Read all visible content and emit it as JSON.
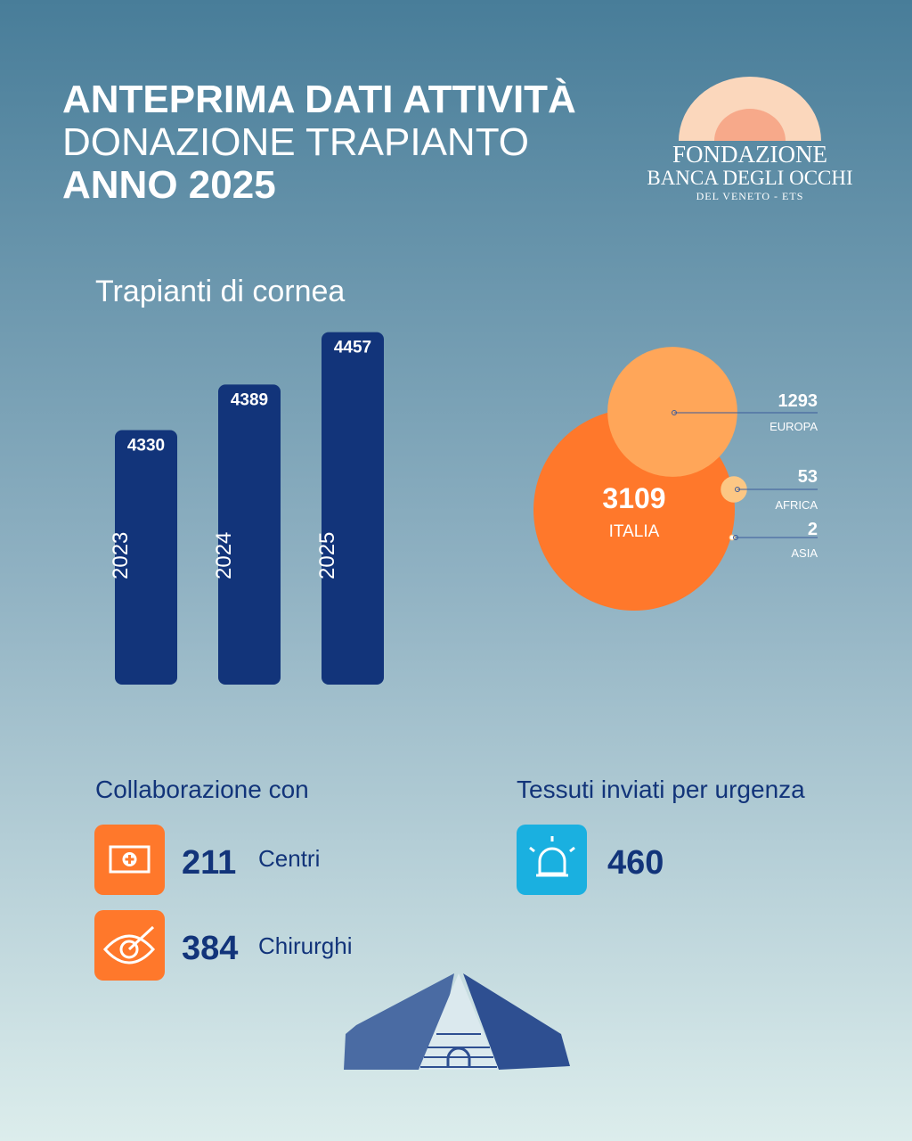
{
  "header": {
    "line1": "ANTEPRIMA DATI ATTIVITÀ",
    "line2": "DONAZIONE TRAPIANTO",
    "line3": "ANNO 2025"
  },
  "logo": {
    "line1": "FONDAZIONE",
    "line2": "BANCA DEGLI OCCHI",
    "line3": "DEL VENETO - ETS"
  },
  "chart_data": [
    {
      "type": "bar",
      "title": "Trapianti di cornea",
      "categories": [
        "2023",
        "2024",
        "2025"
      ],
      "values": [
        4330,
        4389,
        4457
      ],
      "color": "#12347a",
      "ylim": [
        4000,
        4460
      ]
    },
    {
      "type": "bubble",
      "categories": [
        "ITALIA",
        "EUROPA",
        "AFRICA",
        "ASIA"
      ],
      "values": [
        3109,
        1293,
        53,
        2
      ],
      "colors": [
        "#ff782b",
        "#ffa659",
        "#fcc784",
        "#ffffff"
      ]
    }
  ],
  "collaboration": {
    "title": "Collaborazione con",
    "items": [
      {
        "value": 211,
        "label": "Centri"
      },
      {
        "value": 384,
        "label": "Chirurghi"
      }
    ]
  },
  "urgent": {
    "title": "Tessuti inviati per urgenza",
    "value": 460
  }
}
